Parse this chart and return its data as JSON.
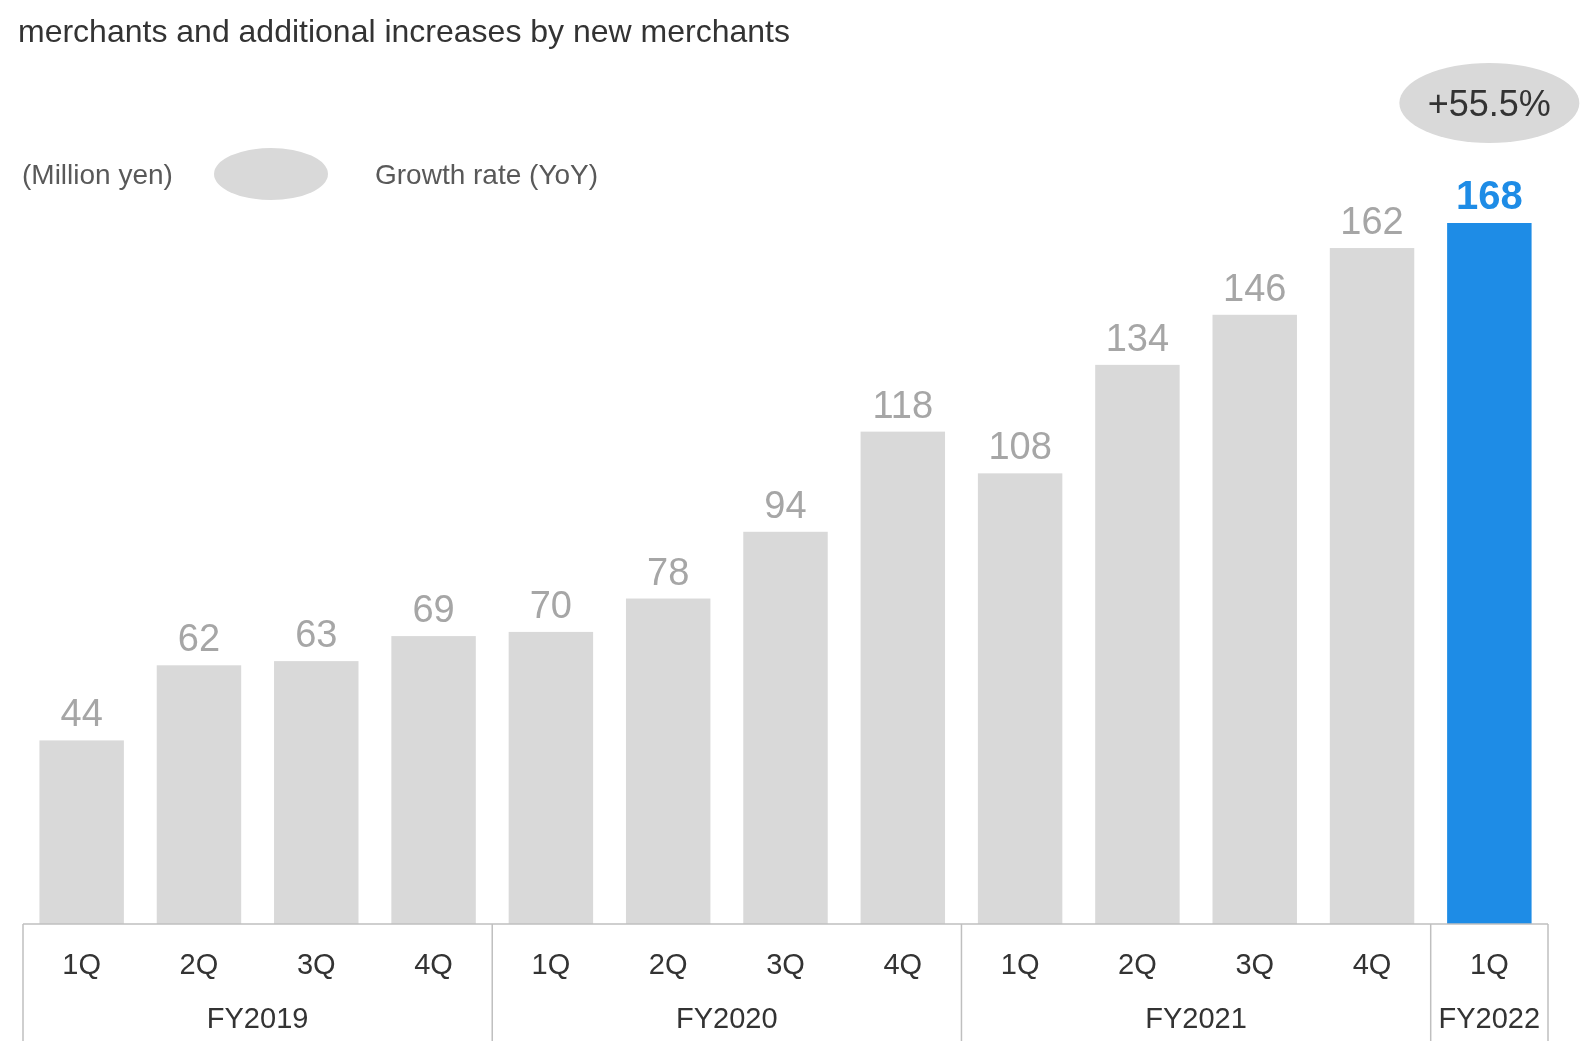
{
  "chart_data": {
    "type": "bar",
    "title": "merchants and additional increases by new merchants",
    "categories": [
      "1Q",
      "2Q",
      "3Q",
      "4Q",
      "1Q",
      "2Q",
      "3Q",
      "4Q",
      "1Q",
      "2Q",
      "3Q",
      "4Q",
      "1Q"
    ],
    "values": [
      44,
      62,
      63,
      69,
      70,
      78,
      94,
      118,
      108,
      134,
      146,
      162,
      168
    ],
    "colors": [
      "#d9d9d9",
      "#d9d9d9",
      "#d9d9d9",
      "#d9d9d9",
      "#d9d9d9",
      "#d9d9d9",
      "#d9d9d9",
      "#d9d9d9",
      "#d9d9d9",
      "#d9d9d9",
      "#d9d9d9",
      "#d9d9d9",
      "#1e8ce6"
    ],
    "data_labels": true,
    "annotations": [
      "(Million yen)",
      "Growth rate (YoY)",
      "+55.5%",
      "FY2019",
      "FY2020",
      "FY2021",
      "FY2022"
    ]
  }
}
